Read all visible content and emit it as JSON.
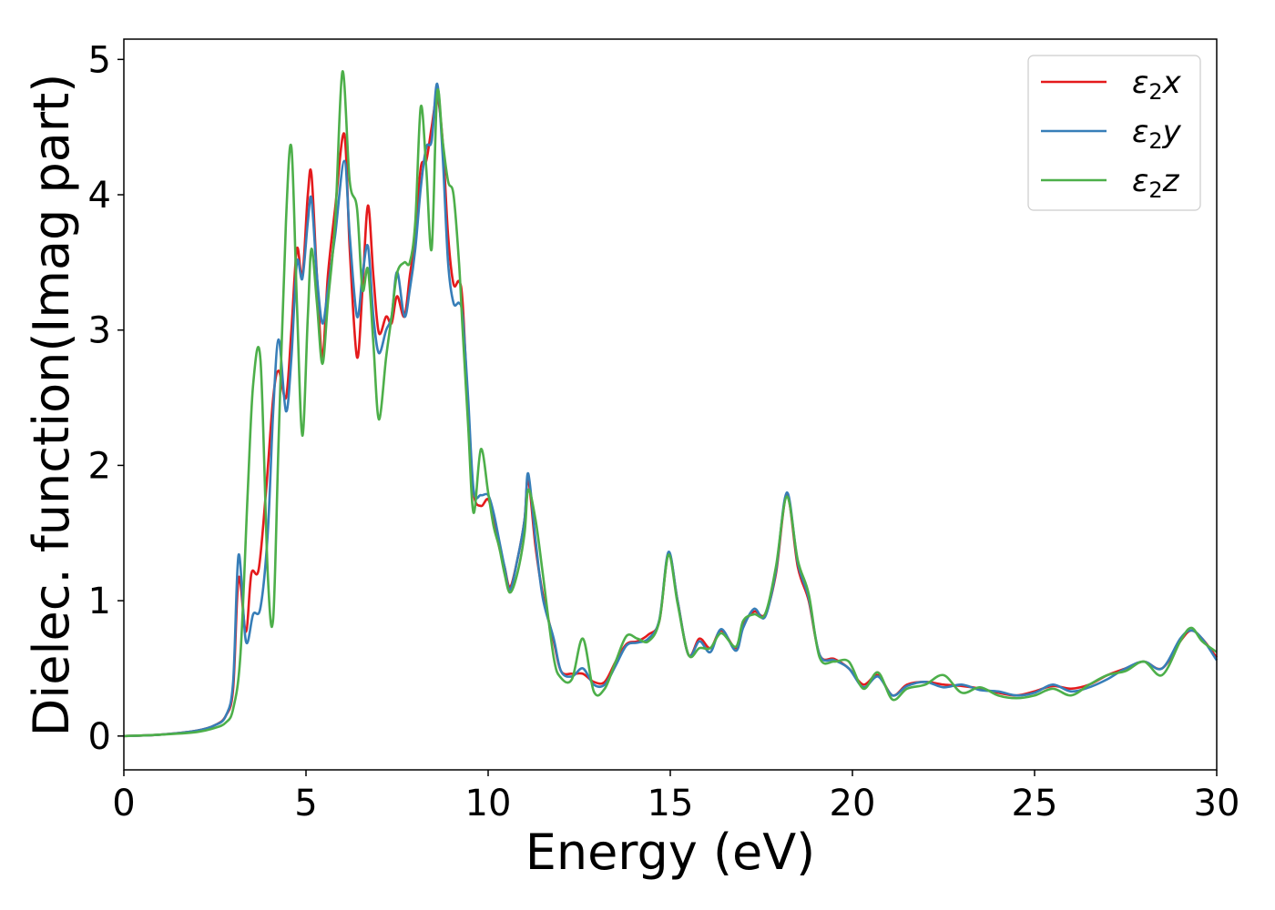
{
  "chart_data": {
    "type": "line",
    "xlabel": "Energy (eV)",
    "ylabel": "Dielec. function(Imag part)",
    "xlim": [
      0,
      30
    ],
    "ylim": [
      -0.25,
      5.15
    ],
    "xticks": [
      0,
      5,
      10,
      15,
      20,
      25,
      30
    ],
    "yticks": [
      0,
      1,
      2,
      3,
      4,
      5
    ],
    "grid": false,
    "legend_position": "top-right",
    "series": [
      {
        "name": "ε₂x",
        "legend_main": "ε",
        "legend_sub": "2",
        "legend_axis": "x",
        "color": "#e41a1c",
        "x": [
          0,
          1,
          2,
          2.5,
          2.8,
          3.0,
          3.15,
          3.35,
          3.5,
          3.7,
          3.9,
          4.1,
          4.25,
          4.45,
          4.6,
          4.75,
          4.9,
          5.05,
          5.15,
          5.3,
          5.45,
          5.6,
          5.8,
          6.05,
          6.2,
          6.4,
          6.55,
          6.7,
          6.85,
          7.0,
          7.2,
          7.35,
          7.5,
          7.7,
          7.85,
          8.0,
          8.15,
          8.3,
          8.45,
          8.6,
          8.75,
          8.9,
          9.05,
          9.2,
          9.3,
          9.45,
          9.6,
          9.8,
          10.0,
          10.15,
          10.3,
          10.45,
          10.6,
          10.8,
          11.0,
          11.1,
          11.3,
          11.5,
          11.8,
          12.0,
          12.3,
          12.6,
          12.9,
          13.2,
          13.5,
          13.8,
          14.1,
          14.4,
          14.7,
          14.95,
          15.2,
          15.5,
          15.8,
          16.1,
          16.4,
          16.8,
          17.0,
          17.3,
          17.6,
          17.9,
          18.2,
          18.5,
          18.8,
          19.1,
          19.5,
          19.9,
          20.3,
          20.7,
          21.1,
          21.5,
          22.0,
          22.5,
          23.0,
          23.5,
          24.0,
          24.5,
          25.0,
          25.5,
          26.0,
          26.5,
          27.0,
          27.5,
          28.0,
          28.5,
          29.0,
          29.3,
          29.6,
          30.0
        ],
        "values": [
          0.0,
          0.01,
          0.04,
          0.08,
          0.15,
          0.35,
          1.17,
          0.77,
          1.2,
          1.23,
          1.8,
          2.5,
          2.7,
          2.5,
          3.0,
          3.6,
          3.4,
          4.0,
          4.15,
          3.4,
          2.8,
          3.4,
          3.9,
          4.45,
          3.6,
          2.8,
          3.3,
          3.92,
          3.4,
          2.98,
          3.1,
          3.05,
          3.25,
          3.1,
          3.4,
          3.7,
          4.2,
          4.25,
          4.5,
          4.72,
          4.4,
          3.7,
          3.34,
          3.36,
          3.2,
          2.4,
          1.8,
          1.7,
          1.75,
          1.6,
          1.4,
          1.25,
          1.1,
          1.3,
          1.6,
          1.9,
          1.4,
          1.05,
          0.7,
          0.48,
          0.46,
          0.46,
          0.4,
          0.4,
          0.55,
          0.68,
          0.7,
          0.75,
          0.85,
          1.35,
          1.0,
          0.6,
          0.72,
          0.65,
          0.78,
          0.65,
          0.82,
          0.92,
          0.9,
          1.2,
          1.78,
          1.25,
          1.0,
          0.6,
          0.57,
          0.5,
          0.38,
          0.45,
          0.3,
          0.38,
          0.4,
          0.38,
          0.37,
          0.35,
          0.32,
          0.3,
          0.33,
          0.37,
          0.35,
          0.38,
          0.45,
          0.5,
          0.55,
          0.5,
          0.7,
          0.78,
          0.72,
          0.58
        ]
      },
      {
        "name": "ε₂y",
        "legend_main": "ε",
        "legend_sub": "2",
        "legend_axis": "y",
        "color": "#377eb8",
        "x": [
          0,
          1,
          2,
          2.5,
          2.8,
          3.0,
          3.15,
          3.35,
          3.55,
          3.75,
          3.95,
          4.1,
          4.25,
          4.45,
          4.6,
          4.75,
          4.9,
          5.05,
          5.15,
          5.3,
          5.45,
          5.6,
          5.8,
          6.05,
          6.2,
          6.4,
          6.55,
          6.7,
          6.85,
          7.0,
          7.2,
          7.35,
          7.5,
          7.7,
          7.85,
          8.0,
          8.15,
          8.3,
          8.45,
          8.6,
          8.75,
          8.9,
          9.05,
          9.2,
          9.3,
          9.45,
          9.6,
          9.8,
          10.0,
          10.15,
          10.3,
          10.45,
          10.6,
          10.8,
          11.0,
          11.1,
          11.3,
          11.5,
          11.8,
          12.0,
          12.3,
          12.6,
          12.9,
          13.2,
          13.5,
          13.8,
          14.1,
          14.4,
          14.7,
          14.95,
          15.2,
          15.5,
          15.8,
          16.1,
          16.4,
          16.8,
          17.0,
          17.3,
          17.6,
          17.9,
          18.2,
          18.5,
          18.8,
          19.1,
          19.5,
          19.9,
          20.3,
          20.7,
          21.1,
          21.5,
          22.0,
          22.5,
          23.0,
          23.5,
          24.0,
          24.5,
          25.0,
          25.5,
          26.0,
          26.5,
          27.0,
          27.5,
          28.0,
          28.5,
          29.0,
          29.3,
          29.6,
          30.0
        ],
        "values": [
          0.0,
          0.01,
          0.04,
          0.08,
          0.15,
          0.4,
          1.34,
          0.7,
          0.9,
          0.95,
          1.5,
          2.4,
          2.93,
          2.4,
          2.8,
          3.5,
          3.38,
          3.8,
          3.97,
          3.4,
          3.05,
          3.3,
          3.7,
          4.25,
          3.7,
          3.1,
          3.4,
          3.62,
          3.1,
          2.83,
          3.0,
          3.1,
          3.43,
          3.1,
          3.3,
          3.6,
          4.05,
          4.35,
          4.4,
          4.82,
          4.3,
          3.5,
          3.2,
          3.2,
          3.1,
          2.5,
          1.82,
          1.78,
          1.78,
          1.65,
          1.45,
          1.25,
          1.08,
          1.3,
          1.6,
          1.94,
          1.45,
          1.02,
          0.72,
          0.48,
          0.44,
          0.5,
          0.38,
          0.38,
          0.52,
          0.67,
          0.69,
          0.72,
          0.86,
          1.36,
          1.0,
          0.6,
          0.7,
          0.62,
          0.79,
          0.63,
          0.8,
          0.94,
          0.88,
          1.22,
          1.8,
          1.28,
          1.02,
          0.6,
          0.56,
          0.5,
          0.36,
          0.44,
          0.3,
          0.37,
          0.4,
          0.36,
          0.38,
          0.34,
          0.33,
          0.3,
          0.32,
          0.38,
          0.33,
          0.36,
          0.42,
          0.5,
          0.55,
          0.5,
          0.72,
          0.78,
          0.72,
          0.56
        ]
      },
      {
        "name": "ε₂z",
        "legend_main": "ε",
        "legend_sub": "2",
        "legend_axis": "z",
        "color": "#4daf4a",
        "x": [
          0,
          1,
          2,
          2.5,
          2.8,
          3.0,
          3.2,
          3.4,
          3.55,
          3.75,
          3.95,
          4.1,
          4.25,
          4.45,
          4.6,
          4.75,
          4.9,
          5.05,
          5.15,
          5.3,
          5.45,
          5.6,
          5.8,
          6.0,
          6.2,
          6.4,
          6.55,
          6.7,
          6.85,
          7.0,
          7.2,
          7.35,
          7.5,
          7.7,
          7.85,
          8.0,
          8.15,
          8.3,
          8.45,
          8.6,
          8.75,
          8.9,
          9.05,
          9.2,
          9.3,
          9.45,
          9.6,
          9.8,
          10.0,
          10.15,
          10.3,
          10.45,
          10.6,
          10.8,
          11.0,
          11.1,
          11.3,
          11.5,
          11.8,
          12.0,
          12.3,
          12.6,
          12.9,
          13.2,
          13.5,
          13.8,
          14.1,
          14.4,
          14.7,
          14.95,
          15.2,
          15.5,
          15.8,
          16.1,
          16.4,
          16.8,
          17.0,
          17.3,
          17.6,
          17.9,
          18.2,
          18.5,
          18.8,
          19.1,
          19.5,
          19.9,
          20.3,
          20.7,
          21.1,
          21.5,
          22.0,
          22.5,
          23.0,
          23.5,
          24.0,
          24.5,
          25.0,
          25.5,
          26.0,
          26.5,
          27.0,
          27.5,
          28.0,
          28.5,
          29.0,
          29.3,
          29.6,
          30.0
        ],
        "values": [
          0.0,
          0.01,
          0.03,
          0.06,
          0.1,
          0.2,
          0.6,
          1.8,
          2.6,
          2.78,
          1.2,
          0.87,
          2.2,
          3.8,
          4.35,
          3.2,
          2.22,
          3.1,
          3.6,
          3.2,
          2.75,
          3.2,
          3.8,
          4.91,
          4.1,
          3.9,
          3.3,
          3.45,
          2.9,
          2.34,
          2.8,
          3.1,
          3.42,
          3.5,
          3.5,
          3.8,
          4.65,
          4.2,
          3.6,
          4.75,
          4.4,
          4.1,
          4.0,
          3.5,
          3.0,
          2.3,
          1.65,
          2.12,
          1.8,
          1.55,
          1.4,
          1.2,
          1.06,
          1.2,
          1.5,
          1.82,
          1.6,
          1.2,
          0.58,
          0.43,
          0.42,
          0.72,
          0.33,
          0.35,
          0.55,
          0.74,
          0.72,
          0.7,
          0.85,
          1.34,
          0.98,
          0.6,
          0.65,
          0.65,
          0.76,
          0.66,
          0.85,
          0.9,
          0.9,
          1.25,
          1.77,
          1.3,
          1.05,
          0.58,
          0.55,
          0.55,
          0.35,
          0.47,
          0.27,
          0.35,
          0.38,
          0.45,
          0.32,
          0.36,
          0.3,
          0.28,
          0.3,
          0.35,
          0.3,
          0.38,
          0.45,
          0.48,
          0.55,
          0.45,
          0.7,
          0.8,
          0.7,
          0.62
        ]
      }
    ]
  }
}
